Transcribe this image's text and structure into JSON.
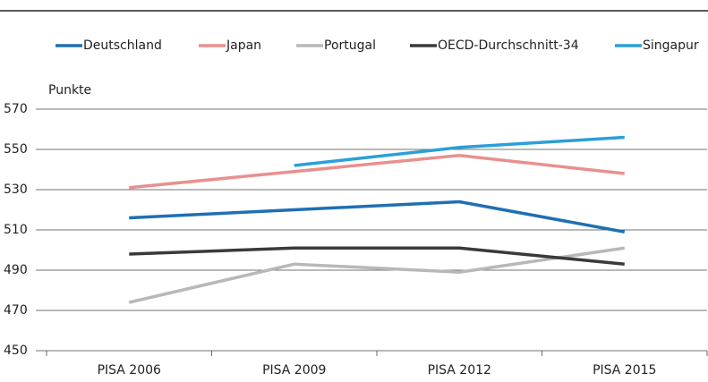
{
  "chart_data": {
    "type": "line",
    "y_axis_label": "Punkte",
    "categories": [
      "PISA 2006",
      "PISA 2009",
      "PISA 2012",
      "PISA 2015"
    ],
    "series": [
      {
        "name": "Deutschland",
        "color": "#1f6fb4",
        "values": [
          516,
          520,
          524,
          509
        ]
      },
      {
        "name": "Japan",
        "color": "#e8908e",
        "values": [
          531,
          539,
          547,
          538
        ]
      },
      {
        "name": "Portugal",
        "color": "#b8b8b8",
        "values": [
          474,
          493,
          489,
          501
        ]
      },
      {
        "name": "OECD-Durchschnitt-34",
        "color": "#3a3a3a",
        "values": [
          498,
          501,
          501,
          493
        ]
      },
      {
        "name": "Singapur",
        "color": "#2b9fd9",
        "values": [
          null,
          542,
          551,
          556
        ]
      }
    ],
    "ylim": [
      450,
      570
    ],
    "yticks": [
      450,
      470,
      490,
      510,
      530,
      550,
      570
    ],
    "grid": true,
    "legend": "top"
  }
}
